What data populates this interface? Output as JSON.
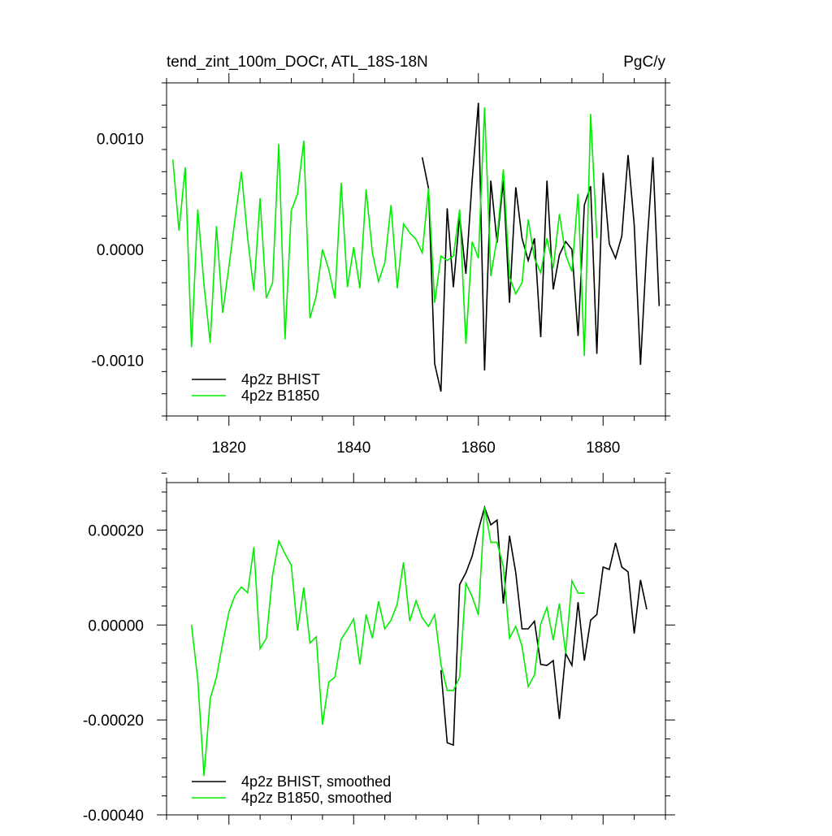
{
  "chart_data": [
    {
      "type": "line",
      "title": "tend_zint_100m_DOCr, ATL_18S-18N",
      "units": "PgC/y",
      "xlim": [
        1810,
        1890
      ],
      "ylim": [
        -0.0015,
        0.0015
      ],
      "x_ticks": [
        1820,
        1840,
        1860,
        1880
      ],
      "x_tick_labels": [
        "1820",
        "1840",
        "1860",
        "1880"
      ],
      "y_ticks": [
        -0.001,
        0.0,
        0.001
      ],
      "y_tick_labels": [
        "-0.0010",
        "0.0000",
        "0.0010"
      ],
      "grid": false,
      "legend_position": "bottom-left",
      "series": [
        {
          "name": "4p2z BHIST",
          "color": "#000000",
          "x": [
            1851,
            1852,
            1853,
            1854,
            1855,
            1856,
            1857,
            1858,
            1859,
            1860,
            1861,
            1862,
            1863,
            1864,
            1865,
            1866,
            1867,
            1868,
            1869,
            1870,
            1871,
            1872,
            1873,
            1874,
            1875,
            1876,
            1877,
            1878,
            1879,
            1880,
            1881,
            1882,
            1883,
            1884,
            1885,
            1886,
            1887,
            1888,
            1889
          ],
          "y": [
            0.00083,
            0.00055,
            -0.00103,
            -0.00128,
            0.00037,
            -0.00034,
            0.0003,
            -0.00022,
            0.00062,
            0.00132,
            -0.00109,
            0.00062,
            6e-05,
            0.00062,
            -0.00048,
            0.00056,
            0.0001,
            -0.0001,
            0.0001,
            -0.00079,
            0.00062,
            -0.00036,
            -5e-05,
            7e-05,
            0.0,
            -0.00078,
            0.0004,
            0.00057,
            -0.00094,
            0.00069,
            5e-05,
            -8e-05,
            0.00012,
            0.00085,
            0.00022,
            -0.00104,
            1e-05,
            0.00083,
            -0.00051
          ]
        },
        {
          "name": "4p2z B1850",
          "color": "#00ee00",
          "x": [
            1811,
            1812,
            1813,
            1814,
            1815,
            1816,
            1817,
            1818,
            1819,
            1820,
            1821,
            1822,
            1823,
            1824,
            1825,
            1826,
            1827,
            1828,
            1829,
            1830,
            1831,
            1832,
            1833,
            1834,
            1835,
            1836,
            1837,
            1838,
            1839,
            1840,
            1841,
            1842,
            1843,
            1844,
            1845,
            1846,
            1847,
            1848,
            1849,
            1850,
            1851,
            1852,
            1853,
            1854,
            1855,
            1856,
            1857,
            1858,
            1859,
            1860,
            1861,
            1862,
            1863,
            1864,
            1865,
            1866,
            1867,
            1868,
            1869,
            1870,
            1871,
            1872,
            1873,
            1874,
            1875,
            1876,
            1877,
            1878,
            1879
          ],
          "y": [
            0.00081,
            0.00017,
            0.00074,
            -0.00088,
            0.00036,
            -0.00032,
            -0.00084,
            0.00021,
            -0.00057,
            -0.00015,
            0.00028,
            0.0007,
            0.0001,
            -0.00037,
            0.00046,
            -0.00044,
            -0.0003,
            0.00095,
            -0.00081,
            0.00035,
            0.0005,
            0.00098,
            -0.00062,
            -0.00042,
            0.0,
            -0.00018,
            -0.00044,
            0.0006,
            -0.00034,
            2e-05,
            -0.00035,
            0.00054,
            -3e-05,
            -0.00029,
            -0.00012,
            0.0004,
            -0.00035,
            0.00023,
            0.00015,
            9e-05,
            -3e-05,
            0.00055,
            -0.00048,
            -6e-05,
            -0.0001,
            -6e-05,
            0.00036,
            -0.00085,
            7e-05,
            -8e-05,
            0.00128,
            -0.00024,
            0.0001,
            0.00072,
            -0.00025,
            -0.0004,
            -0.0003,
            0.00027,
            -8e-05,
            -0.00021,
            0.0001,
            -0.00017,
            0.00032,
            -5e-05,
            -0.0002,
            0.0005,
            -0.00096,
            0.00122,
            0.0001
          ]
        }
      ]
    },
    {
      "type": "line",
      "xlim": [
        1810,
        1890
      ],
      "ylim": [
        -0.0004,
        0.0003
      ],
      "x_ticks": [
        1820,
        1840,
        1860,
        1880
      ],
      "y_ticks": [
        -0.0004,
        -0.0002,
        0.0,
        0.0002
      ],
      "y_tick_labels": [
        "-0.00040",
        "-0.00020",
        "0.00000",
        "0.00020"
      ],
      "grid": false,
      "legend_position": "bottom-left",
      "series": [
        {
          "name": "4p2z BHIST, smoothed",
          "color": "#000000",
          "x": [
            1854,
            1855,
            1856,
            1857,
            1858,
            1859,
            1860,
            1861,
            1862,
            1863,
            1864,
            1865,
            1866,
            1867,
            1868,
            1869,
            1870,
            1871,
            1872,
            1873,
            1874,
            1875,
            1876,
            1877,
            1878,
            1879,
            1880,
            1881,
            1882,
            1883,
            1884,
            1885,
            1886,
            1887
          ],
          "y": [
            -9.5e-05,
            -0.000248,
            -0.000253,
            8.5e-05,
            0.00011,
            0.000145,
            0.0002,
            0.000248,
            0.000211,
            0.000221,
            4.5e-05,
            0.000188,
            0.00011,
            -8e-06,
            -8e-06,
            8e-06,
            -8.3e-05,
            -8.5e-05,
            -7.5e-05,
            -0.000198,
            -6e-05,
            -8.5e-05,
            4.8e-05,
            -7.5e-05,
            1e-05,
            2.2e-05,
            0.000122,
            0.000117,
            0.000173,
            0.000122,
            0.000112,
            -1.8e-05,
            9.5e-05,
            3.3e-05
          ]
        },
        {
          "name": "4p2z B1850, smoothed",
          "color": "#00ee00",
          "x": [
            1814,
            1815,
            1816,
            1817,
            1818,
            1819,
            1820,
            1821,
            1822,
            1823,
            1824,
            1825,
            1826,
            1827,
            1828,
            1829,
            1830,
            1831,
            1832,
            1833,
            1834,
            1835,
            1836,
            1837,
            1838,
            1839,
            1840,
            1841,
            1842,
            1843,
            1844,
            1845,
            1846,
            1847,
            1848,
            1849,
            1850,
            1851,
            1852,
            1853,
            1854,
            1855,
            1856,
            1857,
            1858,
            1859,
            1860,
            1861,
            1862,
            1863,
            1864,
            1865,
            1866,
            1867,
            1868,
            1869,
            1870,
            1871,
            1872,
            1873,
            1874,
            1875,
            1876,
            1877
          ],
          "y": [
            0.0,
            -0.000115,
            -0.000318,
            -0.000155,
            -0.00011,
            -3.8e-05,
            2.8e-05,
            6.3e-05,
            8e-05,
            6.8e-05,
            0.000164,
            -5e-05,
            -2.8e-05,
            0.000105,
            0.000177,
            0.00015,
            0.000126,
            -1.2e-05,
            7.9e-05,
            -3.8e-05,
            -2.5e-05,
            -0.00021,
            -0.00012,
            -0.00011,
            -3e-05,
            -1e-05,
            1.3e-05,
            -8.3e-05,
            2.2e-05,
            -2.8e-05,
            5e-05,
            -8e-06,
            1e-05,
            4.5e-05,
            0.000132,
            8e-06,
            5.1e-05,
            1.5e-05,
            -3e-06,
            2.2e-05,
            -8.3e-05,
            -0.000138,
            -0.000138,
            -0.00011,
            8.8e-05,
            6e-05,
            2.1e-05,
            0.000248,
            0.000174,
            0.000174,
            0.000123,
            -2.8e-05,
            -3e-06,
            -4.5e-05,
            -0.00013,
            -0.000105,
            2e-06,
            3.7e-05,
            -3.2e-05,
            4.5e-05,
            -6e-05,
            9.3e-05,
            6.7e-05,
            6.7e-05
          ]
        }
      ]
    }
  ]
}
